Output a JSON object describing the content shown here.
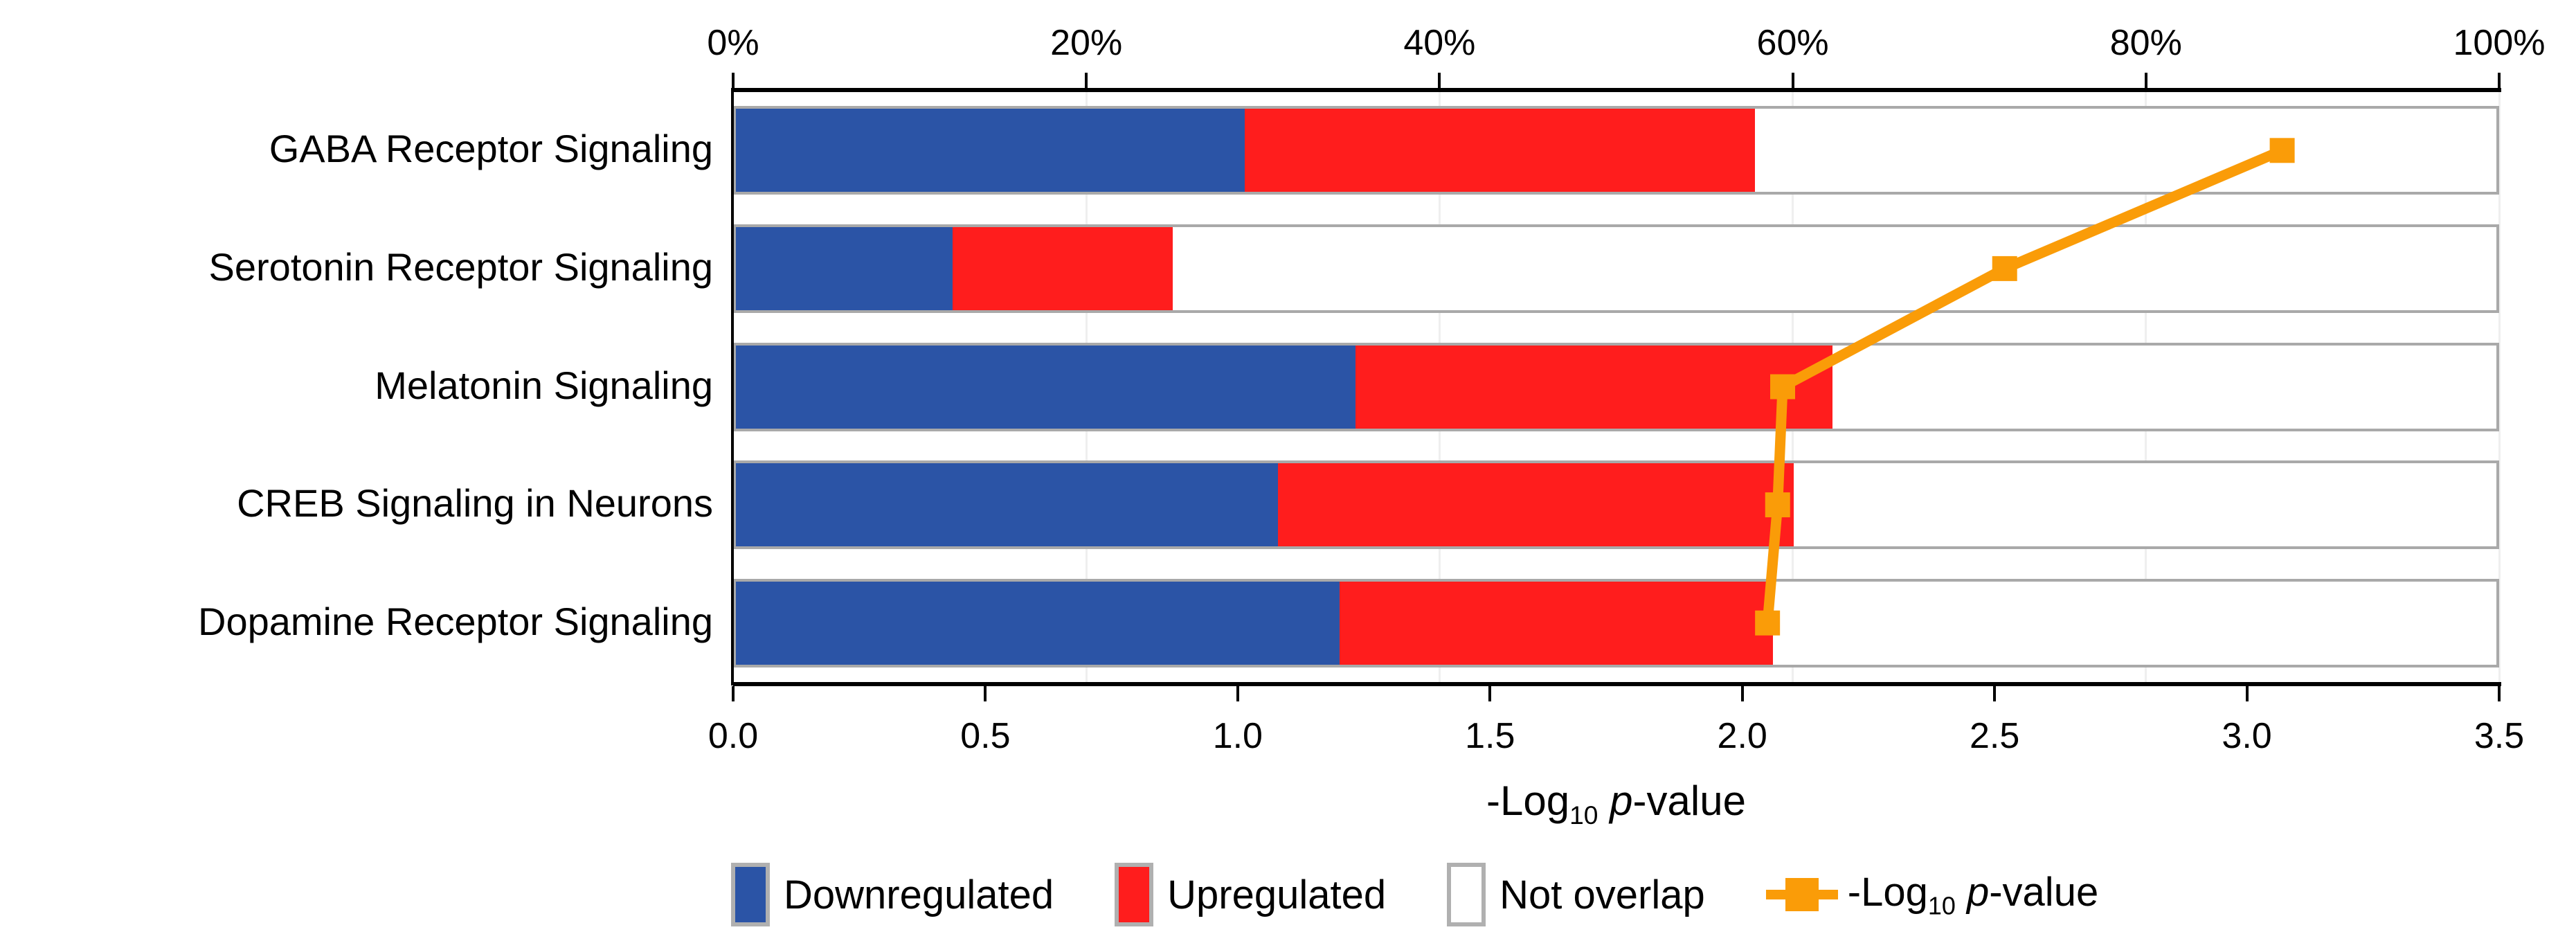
{
  "chart_data": {
    "type": "bar",
    "subtype": "horizontal-stacked-bar-with-line-overlay",
    "categories": [
      "GABA Receptor Signaling",
      "Serotonin Receptor Signaling",
      "Melatonin Signaling",
      "CREB Signaling in Neurons",
      "Dopamine Receptor Signaling"
    ],
    "series": [
      {
        "name": "Downregulated",
        "type": "bar-segment",
        "axis": "top_percent",
        "color": "#2B54A6",
        "values": [
          28.9,
          12.3,
          35.2,
          30.8,
          34.3
        ]
      },
      {
        "name": "Upregulated",
        "type": "bar-segment",
        "axis": "top_percent",
        "color": "#FF1D1D",
        "values": [
          29.0,
          12.5,
          27.1,
          29.3,
          24.6
        ]
      },
      {
        "name": "Not overlap",
        "type": "bar-segment",
        "axis": "top_percent",
        "color": "#FFFFFF",
        "values": [
          42.1,
          75.2,
          37.7,
          39.9,
          41.1
        ]
      },
      {
        "name": "-Log10 p-value",
        "type": "line",
        "axis": "bottom",
        "color": "#FA9C08",
        "values": [
          3.07,
          2.52,
          2.08,
          2.07,
          2.05
        ]
      }
    ],
    "top_axis": {
      "min": 0,
      "max": 100,
      "tick_step": 20,
      "tick_labels": [
        "0%",
        "20%",
        "40%",
        "60%",
        "80%",
        "100%"
      ],
      "grid": true
    },
    "bottom_axis": {
      "min": 0,
      "max": 3.5,
      "tick_step": 0.5,
      "tick_labels": [
        "0.0",
        "0.5",
        "1.0",
        "1.5",
        "2.0",
        "2.5",
        "3.0",
        "3.5"
      ],
      "label_parts": [
        {
          "t": "text",
          "v": "-Log"
        },
        {
          "t": "sub",
          "v": "10"
        },
        {
          "t": "text",
          "v": " "
        },
        {
          "t": "italic",
          "v": "p"
        },
        {
          "t": "text",
          "v": "-value"
        }
      ]
    },
    "legend_position": "bottom",
    "legend": [
      {
        "symbol": "swatch",
        "color": "#2B54A6",
        "label_parts": [
          {
            "t": "text",
            "v": "Downregulated"
          }
        ]
      },
      {
        "symbol": "swatch",
        "color": "#FF1D1D",
        "label_parts": [
          {
            "t": "text",
            "v": "Upregulated"
          }
        ]
      },
      {
        "symbol": "swatch",
        "color": "#FFFFFF",
        "label_parts": [
          {
            "t": "text",
            "v": "Not overlap"
          }
        ]
      },
      {
        "symbol": "line-marker",
        "color": "#FA9C08",
        "label_parts": [
          {
            "t": "text",
            "v": "-Log"
          },
          {
            "t": "sub",
            "v": "10"
          },
          {
            "t": "text",
            "v": " "
          },
          {
            "t": "italic",
            "v": "p"
          },
          {
            "t": "text",
            "v": "-value"
          }
        ]
      }
    ],
    "colors": {
      "bar_border": "#A9A9A9",
      "gridline": "#EFEFEF",
      "axis": "#000000",
      "line": "#FA9C08"
    }
  }
}
